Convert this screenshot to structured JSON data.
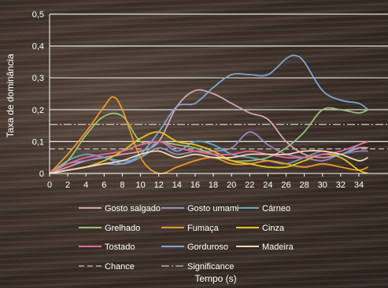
{
  "chart_data": {
    "type": "line",
    "xlabel": "Tempo (s)",
    "ylabel": "Taxa de dominância",
    "ylim": [
      0,
      0.5
    ],
    "xlim": [
      0,
      35
    ],
    "x_ticks": [
      "0",
      "2",
      "4",
      "6",
      "8",
      "10",
      "12",
      "14",
      "16",
      "18",
      "20",
      "22",
      "24",
      "26",
      "28",
      "30",
      "32",
      "34"
    ],
    "y_ticks": [
      "0",
      "0,1",
      "0,2",
      "0,3",
      "0,4",
      "0,5"
    ],
    "grid": "horizontal",
    "legend_position": "bottom",
    "series": [
      {
        "name": "Gosto salgado",
        "color": "#d7a0b8",
        "x": [
          0,
          2,
          4,
          6,
          8,
          10,
          12,
          14,
          16,
          18,
          20,
          22,
          24,
          26,
          28,
          30,
          32,
          34,
          35
        ],
        "y": [
          0,
          0.02,
          0.04,
          0.05,
          0.06,
          0.07,
          0.1,
          0.21,
          0.26,
          0.25,
          0.22,
          0.19,
          0.17,
          0.1,
          0.06,
          0.05,
          0.06,
          0.08,
          0.08
        ]
      },
      {
        "name": "Gosto umami",
        "color": "#9a86c4",
        "x": [
          0,
          2,
          4,
          6,
          8,
          10,
          12,
          14,
          16,
          18,
          20,
          22,
          24,
          26,
          28,
          30,
          32,
          34,
          35
        ],
        "y": [
          0,
          0.03,
          0.04,
          0.05,
          0.03,
          0.05,
          0.08,
          0.06,
          0.07,
          0.07,
          0.08,
          0.13,
          0.09,
          0.06,
          0.05,
          0.04,
          0.06,
          0.07,
          0.07
        ]
      },
      {
        "name": "Cárneo",
        "color": "#62a8c6",
        "x": [
          0,
          2,
          4,
          6,
          8,
          10,
          12,
          14,
          16,
          18,
          20,
          22,
          24,
          26,
          28,
          30,
          32,
          34,
          35
        ],
        "y": [
          0,
          0.04,
          0.06,
          0.05,
          0.04,
          0.05,
          0.1,
          0.07,
          0.1,
          0.09,
          0.06,
          0.05,
          0.04,
          0.03,
          0.05,
          0.07,
          0.06,
          0.09,
          0.1
        ]
      },
      {
        "name": "Grelhado",
        "color": "#9bbe7c",
        "x": [
          0,
          2,
          4,
          6,
          8,
          10,
          12,
          14,
          16,
          18,
          20,
          22,
          24,
          26,
          28,
          30,
          32,
          34,
          35
        ],
        "y": [
          0,
          0.04,
          0.12,
          0.18,
          0.18,
          0.1,
          0.1,
          0.09,
          0.08,
          0.06,
          0.04,
          0.04,
          0.05,
          0.08,
          0.13,
          0.2,
          0.2,
          0.19,
          0.2
        ]
      },
      {
        "name": "Fumaça",
        "color": "#f0962c",
        "x": [
          0,
          2,
          4,
          6,
          7,
          8,
          10,
          12,
          14,
          16,
          18,
          20,
          22,
          24,
          26,
          28,
          30,
          32,
          34,
          35
        ],
        "y": [
          0,
          0.06,
          0.13,
          0.21,
          0.24,
          0.2,
          0.05,
          0.0,
          0.02,
          0.04,
          0.05,
          0.03,
          0.03,
          0.04,
          0.03,
          0.02,
          0.03,
          0.02,
          0.01,
          0.02
        ]
      },
      {
        "name": "Cinza",
        "color": "#e8c21c",
        "x": [
          0,
          2,
          4,
          6,
          8,
          10,
          12,
          14,
          16,
          18,
          20,
          22,
          24,
          26,
          28,
          30,
          32,
          34,
          35
        ],
        "y": [
          0,
          0.01,
          0.02,
          0.04,
          0.07,
          0.11,
          0.13,
          0.1,
          0.09,
          0.07,
          0.04,
          0.03,
          0.02,
          0.02,
          0.04,
          0.06,
          0.05,
          0.01,
          0.0
        ]
      },
      {
        "name": "Tostado",
        "color": "#e66a9c",
        "x": [
          0,
          2,
          4,
          6,
          8,
          10,
          12,
          14,
          16,
          18,
          20,
          22,
          24,
          26,
          28,
          30,
          32,
          34,
          35
        ],
        "y": [
          0,
          0.03,
          0.05,
          0.06,
          0.07,
          0.09,
          0.1,
          0.08,
          0.07,
          0.06,
          0.06,
          0.07,
          0.06,
          0.05,
          0.05,
          0.06,
          0.07,
          0.09,
          0.1
        ]
      },
      {
        "name": "Gorduroso",
        "color": "#7ba5cf",
        "x": [
          0,
          2,
          4,
          6,
          8,
          10,
          12,
          14,
          16,
          18,
          20,
          22,
          24,
          26,
          27,
          28,
          30,
          32,
          34,
          35
        ],
        "y": [
          0,
          0.01,
          0.02,
          0.03,
          0.03,
          0.06,
          0.13,
          0.21,
          0.22,
          0.27,
          0.31,
          0.31,
          0.31,
          0.36,
          0.37,
          0.35,
          0.26,
          0.23,
          0.22,
          0.2
        ]
      },
      {
        "name": "Madeira",
        "color": "#f7d6b2",
        "x": [
          0,
          2,
          4,
          6,
          8,
          10,
          12,
          14,
          16,
          18,
          20,
          22,
          24,
          26,
          28,
          30,
          32,
          34,
          35
        ],
        "y": [
          0,
          0.01,
          0.02,
          0.03,
          0.04,
          0.06,
          0.07,
          0.05,
          0.06,
          0.05,
          0.05,
          0.06,
          0.06,
          0.06,
          0.07,
          0.07,
          0.06,
          0.04,
          0.05
        ]
      }
    ],
    "reference_lines": [
      {
        "name": "Chance",
        "y": 0.077,
        "color": "#c9c2bb",
        "dash": "dash"
      },
      {
        "name": "Significance",
        "y": 0.154,
        "color": "#c9c2bb",
        "dash": "dashdot"
      }
    ]
  }
}
